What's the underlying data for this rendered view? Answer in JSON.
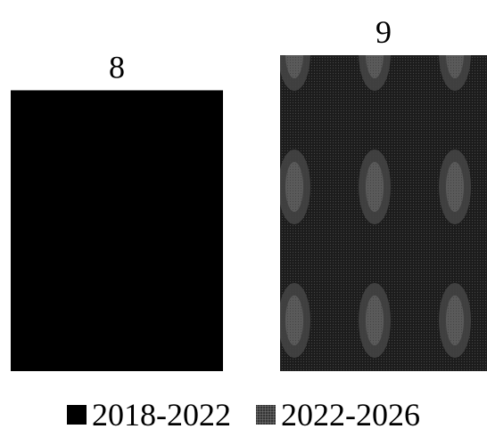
{
  "chart_data": {
    "type": "bar",
    "title": "",
    "xlabel": "",
    "ylabel": "",
    "categories": [
      "2018-2022",
      "2022-2026"
    ],
    "values": [
      8,
      9
    ],
    "data_labels": [
      "8",
      "9"
    ],
    "ylim": [
      0,
      9
    ],
    "grid": false,
    "legend": {
      "placement": "bottom",
      "entries": [
        {
          "label": "2018-2022",
          "fill": "solid",
          "color": "#000000"
        },
        {
          "label": "2022-2026",
          "fill": "speckled-pattern",
          "color": "#222222"
        }
      ]
    }
  }
}
